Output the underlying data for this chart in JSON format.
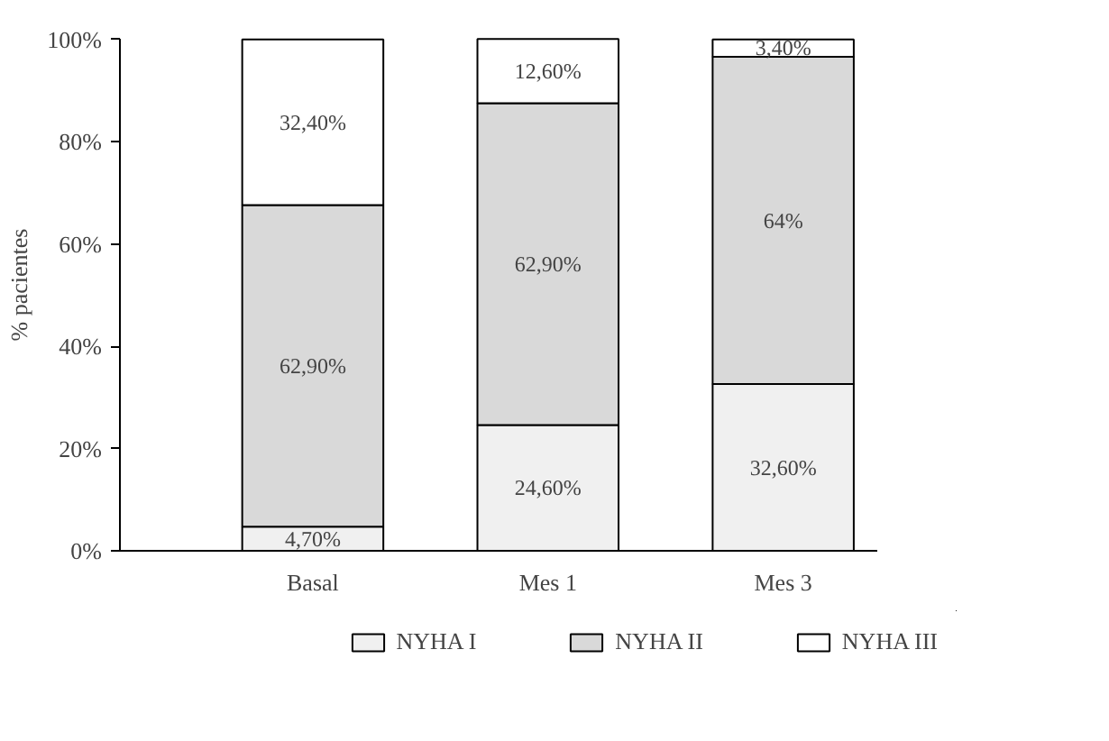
{
  "chart_data": {
    "type": "bar",
    "stacked": true,
    "ylabel": "% pacientes",
    "categories": [
      "Basal",
      "Mes 1",
      "Mes 3"
    ],
    "series": [
      {
        "name": "NYHA I",
        "color": "#f0f0f0",
        "values": [
          4.7,
          24.6,
          32.6
        ],
        "value_labels": [
          "4,70%",
          "24,60%",
          "32,60%"
        ]
      },
      {
        "name": "NYHA II",
        "color": "#d9d9d9",
        "values": [
          62.9,
          62.9,
          64
        ],
        "value_labels": [
          "62,90%",
          "62,90%",
          "64%"
        ]
      },
      {
        "name": "NYHA III",
        "color": "#ffffff",
        "values": [
          32.4,
          12.6,
          3.4
        ],
        "value_labels": [
          "32,40%",
          "12,60%",
          "3,40%"
        ]
      }
    ],
    "ylim": [
      0,
      100
    ],
    "yticks": [
      {
        "value": 0,
        "label": "0%"
      },
      {
        "value": 20,
        "label": "20%"
      },
      {
        "value": 40,
        "label": "40%"
      },
      {
        "value": 60,
        "label": "60%"
      },
      {
        "value": 80,
        "label": "80%"
      },
      {
        "value": 100,
        "label": "100%"
      }
    ],
    "grid": false,
    "legend": "bottom"
  }
}
